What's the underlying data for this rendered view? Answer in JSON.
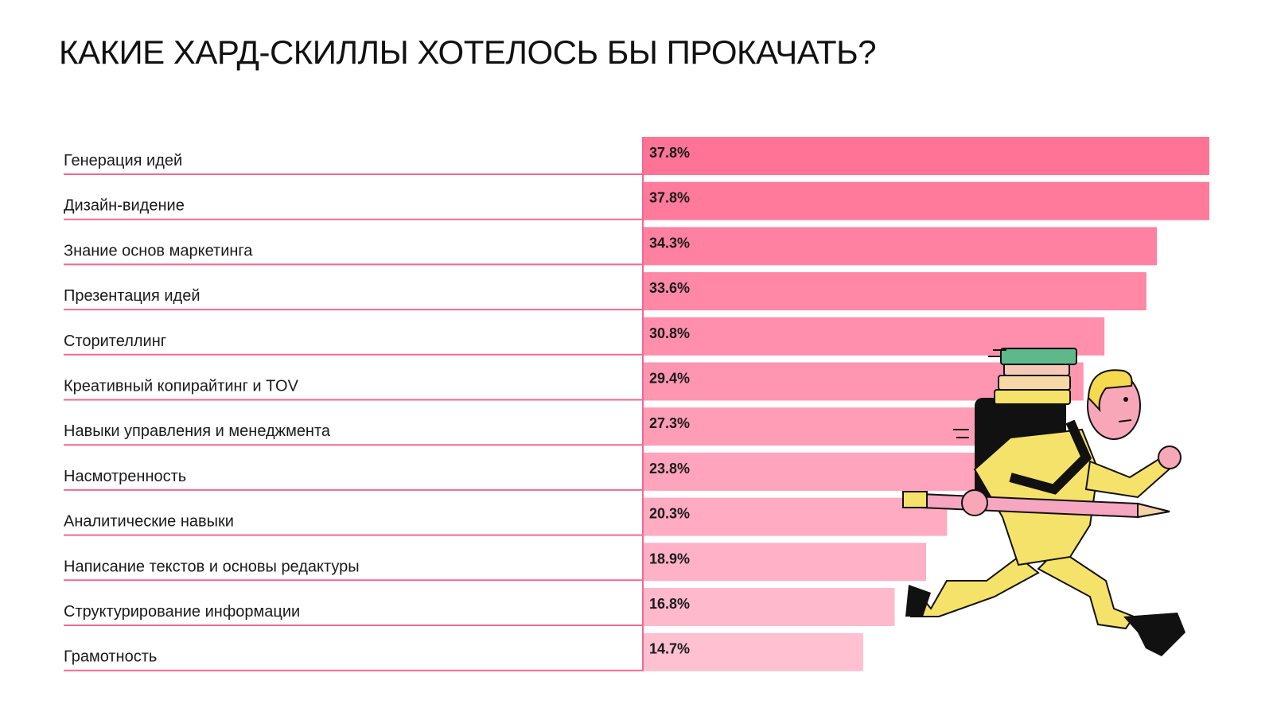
{
  "page": {
    "title": "КАКИЕ ХАРД-СКИЛЛЫ ХОТЕЛОСЬ БЫ ПРОКАЧАТЬ?"
  },
  "chart_data": {
    "type": "bar",
    "orientation": "horizontal",
    "title": "КАКИЕ ХАРД-СКИЛЛЫ ХОТЕЛОСЬ БЫ ПРОКАЧАТЬ?",
    "xlabel": "",
    "ylabel": "",
    "xlim": [
      0,
      37.8
    ],
    "grid": false,
    "legend": "none",
    "categories": [
      "Генерация идей",
      "Дизайн-видение",
      "Знание основ маркетинга",
      "Презентация идей",
      "Сторителлинг",
      "Креативный копирайтинг и TOV",
      "Навыки управления и менеджмента",
      "Насмотренность",
      "Аналитические навыки",
      "Написание текстов и основы редактуры",
      "Структурирование информации",
      "Грамотность"
    ],
    "values": [
      37.8,
      37.8,
      34.3,
      33.6,
      30.8,
      29.4,
      27.3,
      23.8,
      20.3,
      18.9,
      16.8,
      14.7
    ],
    "value_labels": [
      "37.8%",
      "37.8%",
      "34.3%",
      "33.6%",
      "30.8%",
      "29.4%",
      "27.3%",
      "23.8%",
      "20.3%",
      "18.9%",
      "16.8%",
      "14.7%"
    ],
    "colors": {
      "bar_top": "#ff7396",
      "bar_bottom": "#ffc0d2",
      "rule": "#f06a8f"
    }
  },
  "illustration": {
    "icon": "running-man-with-books-and-pencil-icon"
  }
}
